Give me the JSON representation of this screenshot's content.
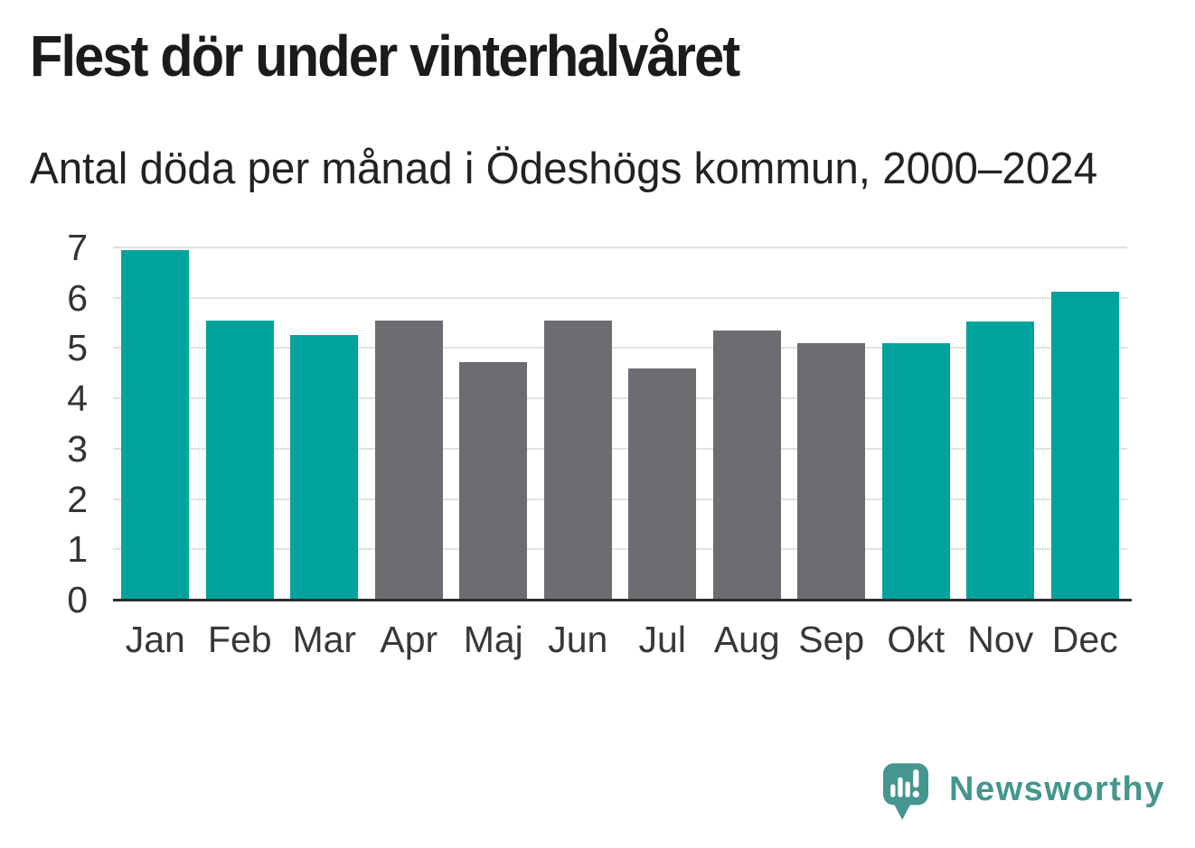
{
  "header": {
    "title": "Flest dör under vinterhalvåret",
    "subtitle": "Antal döda per månad i Ödeshögs kommun, 2000–2024"
  },
  "chart_data": {
    "type": "bar",
    "title": "Flest dör under vinterhalvåret",
    "subtitle": "Antal döda per månad i Ödeshögs kommun, 2000–2024",
    "categories": [
      "Jan",
      "Feb",
      "Mar",
      "Apr",
      "Maj",
      "Jun",
      "Jul",
      "Aug",
      "Sep",
      "Okt",
      "Nov",
      "Dec"
    ],
    "values": [
      6.95,
      5.55,
      5.26,
      5.55,
      4.72,
      5.55,
      4.6,
      5.34,
      5.1,
      5.09,
      5.53,
      6.12
    ],
    "bar_color_keys": [
      "winter",
      "winter",
      "winter",
      "summer",
      "summer",
      "summer",
      "summer",
      "summer",
      "summer",
      "winter",
      "winter",
      "winter"
    ],
    "colors": {
      "winter": "#00a39b",
      "summer": "#6c6c71",
      "gridline": "#e2e2e2",
      "axis": "#2d2d2d"
    },
    "xlabel": "",
    "ylabel": "",
    "ylim": [
      0,
      7
    ],
    "yticks": [
      0,
      1,
      2,
      3,
      4,
      5,
      6,
      7
    ],
    "grid": true,
    "legend": false
  },
  "branding": {
    "logo_text": "Newsworthy",
    "logo_color": "#45968f",
    "logo_icon": "newsworthy-speech-bubble-bar-chart-icon"
  }
}
